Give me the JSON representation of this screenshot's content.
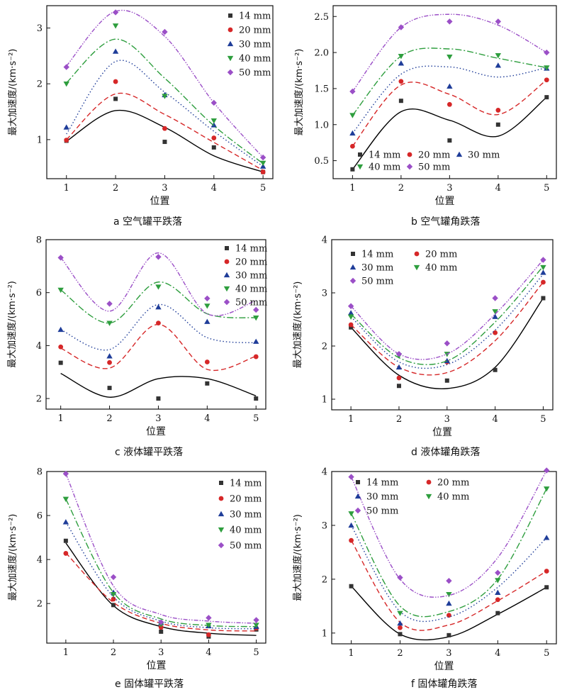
{
  "colors": {
    "14 mm": "#333333",
    "20 mm": "#d62728",
    "30 mm": "#1f3d99",
    "40 mm": "#2e9e3e",
    "50 mm": "#9b4fc7",
    "axis": "#111111"
  },
  "chart_data": [
    {
      "id": "a",
      "type": "scatter",
      "caption": "a 空气罐平跌落",
      "xlabel": "位置",
      "ylabel": "最大加速度/(km·s⁻²)",
      "x": [
        1,
        2,
        3,
        4,
        5
      ],
      "xlim": [
        0.6,
        5.2
      ],
      "ylim": [
        0.3,
        3.4
      ],
      "yticks": [
        1,
        2,
        3
      ],
      "legend": "top-right-column",
      "series": [
        {
          "name": "14 mm",
          "marker": "square",
          "values": [
            0.98,
            1.73,
            0.96,
            0.86,
            0.42
          ],
          "fit": [
            0.97,
            1.52,
            1.22,
            0.71,
            0.42
          ]
        },
        {
          "name": "20 mm",
          "marker": "circle",
          "values": [
            0.99,
            2.04,
            1.2,
            1.03,
            0.42
          ],
          "fit": [
            1.0,
            1.82,
            1.45,
            0.95,
            0.45
          ]
        },
        {
          "name": "30 mm",
          "marker": "triangle",
          "values": [
            1.22,
            2.58,
            1.8,
            1.26,
            0.52
          ],
          "fit": [
            1.1,
            2.4,
            1.85,
            1.15,
            0.52
          ]
        },
        {
          "name": "40 mm",
          "marker": "tridown",
          "values": [
            2.0,
            3.04,
            1.78,
            1.34,
            0.58
          ],
          "fit": [
            2.02,
            2.8,
            2.1,
            1.25,
            0.57
          ]
        },
        {
          "name": "50 mm",
          "marker": "diamond",
          "values": [
            2.3,
            3.28,
            2.93,
            1.66,
            0.68
          ],
          "fit": [
            2.32,
            3.3,
            2.85,
            1.66,
            0.68
          ]
        }
      ]
    },
    {
      "id": "b",
      "type": "scatter",
      "caption": "b 空气罐角跌落",
      "xlabel": "位置",
      "ylabel": "最大加速度/(km·s⁻²)",
      "x": [
        1,
        2,
        3,
        4,
        5
      ],
      "xlim": [
        0.6,
        5.2
      ],
      "ylim": [
        0.25,
        2.65
      ],
      "yticks": [
        0.5,
        1.0,
        1.5,
        2.0,
        2.5
      ],
      "legend": "bottom-left",
      "series": [
        {
          "name": "14 mm",
          "marker": "square",
          "values": [
            0.38,
            1.33,
            0.78,
            1.0,
            1.38
          ],
          "fit": [
            0.38,
            1.18,
            1.06,
            0.84,
            1.38
          ]
        },
        {
          "name": "20 mm",
          "marker": "circle",
          "values": [
            0.7,
            1.6,
            1.28,
            1.2,
            1.62
          ],
          "fit": [
            0.7,
            1.55,
            1.42,
            1.14,
            1.62
          ]
        },
        {
          "name": "30 mm",
          "marker": "triangle",
          "values": [
            0.88,
            1.85,
            1.53,
            1.82,
            1.78
          ],
          "fit": [
            0.88,
            1.7,
            1.8,
            1.66,
            1.79
          ]
        },
        {
          "name": "40 mm",
          "marker": "tridown",
          "values": [
            1.13,
            1.95,
            1.94,
            1.96,
            1.79
          ],
          "fit": [
            1.13,
            1.95,
            2.05,
            1.92,
            1.79
          ]
        },
        {
          "name": "50 mm",
          "marker": "diamond",
          "values": [
            1.46,
            2.35,
            2.43,
            2.43,
            2.0
          ],
          "fit": [
            1.46,
            2.35,
            2.53,
            2.38,
            2.0
          ]
        }
      ]
    },
    {
      "id": "c",
      "type": "scatter",
      "caption": "c 液体罐平跌落",
      "xlabel": "位置",
      "ylabel": "最大加速度/(km·s⁻²)",
      "x": [
        1,
        2,
        3,
        4,
        5
      ],
      "xlim": [
        0.7,
        5.2
      ],
      "ylim": [
        1.6,
        8.0
      ],
      "yticks": [
        2,
        4,
        6,
        8
      ],
      "legend": "top-right-column",
      "series": [
        {
          "name": "14 mm",
          "marker": "square",
          "values": [
            3.35,
            2.4,
            2.0,
            2.57,
            2.0
          ],
          "fit": [
            2.95,
            2.05,
            2.75,
            2.75,
            2.1
          ]
        },
        {
          "name": "20 mm",
          "marker": "circle",
          "values": [
            3.95,
            3.36,
            4.85,
            3.38,
            3.58
          ],
          "fit": [
            3.9,
            3.15,
            4.8,
            3.1,
            3.6
          ]
        },
        {
          "name": "30 mm",
          "marker": "triangle",
          "values": [
            4.6,
            3.6,
            5.45,
            4.9,
            4.15
          ],
          "fit": [
            4.6,
            3.85,
            5.55,
            4.3,
            4.1
          ]
        },
        {
          "name": "40 mm",
          "marker": "tridown",
          "values": [
            6.1,
            4.85,
            6.22,
            5.5,
            5.05
          ],
          "fit": [
            6.1,
            4.85,
            6.4,
            5.2,
            5.05
          ]
        },
        {
          "name": "50 mm",
          "marker": "diamond",
          "values": [
            7.32,
            5.58,
            7.35,
            5.78,
            5.35
          ],
          "fit": [
            7.32,
            5.3,
            7.5,
            5.2,
            5.7
          ]
        }
      ]
    },
    {
      "id": "d",
      "type": "scatter",
      "caption": "d 液体罐角跌落",
      "xlabel": "位置",
      "ylabel": "最大加速度/(km·s⁻²)",
      "x": [
        1,
        2,
        3,
        4,
        5
      ],
      "xlim": [
        0.6,
        5.2
      ],
      "ylim": [
        0.8,
        4.0
      ],
      "yticks": [
        1,
        2,
        3,
        4
      ],
      "legend": "top-left-grid",
      "series": [
        {
          "name": "14 mm",
          "marker": "square",
          "values": [
            2.35,
            1.25,
            1.35,
            1.55,
            2.9
          ],
          "fit": [
            2.35,
            1.45,
            1.2,
            1.6,
            2.9
          ]
        },
        {
          "name": "20 mm",
          "marker": "circle",
          "values": [
            2.4,
            1.4,
            1.7,
            2.25,
            3.2
          ],
          "fit": [
            2.4,
            1.6,
            1.5,
            2.1,
            3.2
          ]
        },
        {
          "name": "30 mm",
          "marker": "triangle",
          "values": [
            2.62,
            1.6,
            1.72,
            2.55,
            3.38
          ],
          "fit": [
            2.55,
            1.7,
            1.65,
            2.3,
            3.35
          ]
        },
        {
          "name": "40 mm",
          "marker": "tridown",
          "values": [
            2.55,
            1.82,
            1.85,
            2.65,
            3.48
          ],
          "fit": [
            2.6,
            1.78,
            1.72,
            2.45,
            3.5
          ]
        },
        {
          "name": "50 mm",
          "marker": "diamond",
          "values": [
            2.75,
            1.85,
            2.05,
            2.9,
            3.62
          ],
          "fit": [
            2.75,
            1.85,
            1.85,
            2.6,
            3.62
          ]
        }
      ]
    },
    {
      "id": "e",
      "type": "scatter",
      "caption": "e 固体罐平跌落",
      "xlabel": "位置",
      "ylabel": "最大加速度/(km·s⁻²)",
      "x": [
        1,
        2,
        3,
        4,
        5
      ],
      "xlim": [
        0.6,
        5.2
      ],
      "ylim": [
        0.2,
        8.0
      ],
      "yticks": [
        2,
        4,
        6,
        8
      ],
      "legend": "top-right-column",
      "series": [
        {
          "name": "14 mm",
          "marker": "square",
          "values": [
            4.85,
            1.93,
            0.72,
            0.5,
            0.82
          ],
          "fit": [
            4.75,
            1.9,
            0.95,
            0.65,
            0.55
          ]
        },
        {
          "name": "20 mm",
          "marker": "circle",
          "values": [
            4.28,
            2.2,
            0.92,
            0.58,
            0.88
          ],
          "fit": [
            4.3,
            2.05,
            1.1,
            0.8,
            0.75
          ]
        },
        {
          "name": "30 mm",
          "marker": "triangle",
          "values": [
            5.7,
            2.5,
            1.12,
            0.98,
            0.95
          ],
          "fit": [
            5.7,
            2.3,
            1.2,
            0.9,
            0.85
          ]
        },
        {
          "name": "40 mm",
          "marker": "tridown",
          "values": [
            6.75,
            2.42,
            1.05,
            1.02,
            1.02
          ],
          "fit": [
            6.75,
            2.5,
            1.3,
            1.0,
            0.95
          ]
        },
        {
          "name": "50 mm",
          "marker": "diamond",
          "values": [
            7.9,
            3.2,
            1.15,
            1.35,
            1.25
          ],
          "fit": [
            7.9,
            2.8,
            1.5,
            1.2,
            1.1
          ]
        }
      ]
    },
    {
      "id": "f",
      "type": "scatter",
      "caption": "f 固体罐角跌落",
      "xlabel": "位置",
      "ylabel": "最大加速度/(km·s⁻²)",
      "x": [
        1,
        2,
        3,
        4,
        5
      ],
      "xlim": [
        0.6,
        5.2
      ],
      "ylim": [
        0.8,
        4.0
      ],
      "yticks": [
        1,
        2,
        3,
        4
      ],
      "legend": "top-left-grid",
      "series": [
        {
          "name": "14 mm",
          "marker": "square",
          "values": [
            1.87,
            0.98,
            0.96,
            1.37,
            1.85
          ],
          "fit": [
            1.87,
            0.98,
            0.93,
            1.35,
            1.85
          ]
        },
        {
          "name": "20 mm",
          "marker": "circle",
          "values": [
            2.72,
            1.1,
            1.33,
            1.62,
            2.15
          ],
          "fit": [
            2.72,
            1.2,
            1.15,
            1.6,
            2.15
          ]
        },
        {
          "name": "30 mm",
          "marker": "triangle",
          "values": [
            3.0,
            1.18,
            1.55,
            1.75,
            2.77
          ],
          "fit": [
            3.0,
            1.4,
            1.3,
            1.85,
            2.77
          ]
        },
        {
          "name": "40 mm",
          "marker": "tridown",
          "values": [
            3.22,
            1.37,
            1.72,
            1.98,
            3.68
          ],
          "fit": [
            3.22,
            1.5,
            1.4,
            2.0,
            3.68
          ]
        },
        {
          "name": "50 mm",
          "marker": "diamond",
          "values": [
            3.9,
            2.03,
            1.97,
            2.12,
            4.02
          ],
          "fit": [
            3.9,
            2.0,
            1.7,
            2.4,
            4.02
          ]
        }
      ]
    }
  ]
}
